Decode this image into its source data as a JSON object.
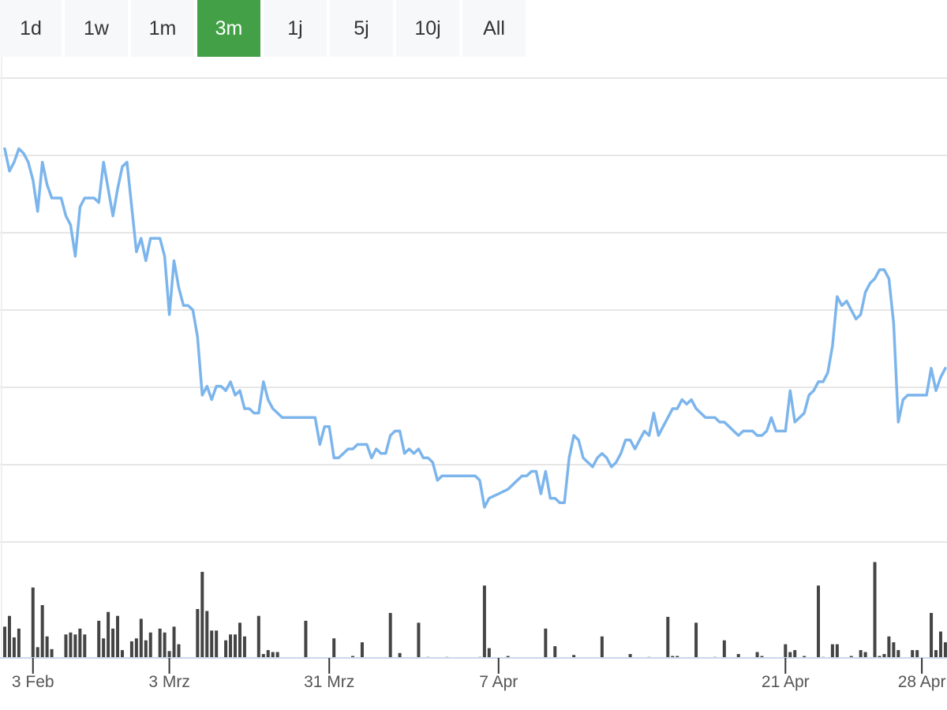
{
  "range_selector": {
    "buttons": [
      {
        "label": "1d",
        "active": false
      },
      {
        "label": "1w",
        "active": false
      },
      {
        "label": "1m",
        "active": false
      },
      {
        "label": "3m",
        "active": true
      },
      {
        "label": "1j",
        "active": false
      },
      {
        "label": "5j",
        "active": false
      },
      {
        "label": "10j",
        "active": false
      },
      {
        "label": "All",
        "active": false
      }
    ],
    "active_color": "#43a047"
  },
  "chart_data": {
    "type": "line",
    "title": "",
    "xlabel": "",
    "ylabel": "",
    "grid": true,
    "line_color": "#7cb5ec",
    "volume_color": "#444444",
    "x_ticks": [
      {
        "label": "3 Feb",
        "day": 3
      },
      {
        "label": "3 Mrz",
        "day": 32
      },
      {
        "label": "31 Mrz",
        "day": 66
      },
      {
        "label": "7 Apr",
        "day": 102
      },
      {
        "label": "21 Apr",
        "day": 163
      },
      {
        "label": "28 Apr",
        "day": 192
      }
    ],
    "xlim": [
      -3,
      195
    ],
    "ylim": [
      0,
      100
    ],
    "series": [
      {
        "values": [
          [
            -3,
            86
          ],
          [
            -2,
            81
          ],
          [
            -1,
            83
          ],
          [
            0,
            86
          ],
          [
            1,
            85
          ],
          [
            2,
            83
          ],
          [
            3,
            79
          ],
          [
            4,
            72
          ],
          [
            5,
            83
          ],
          [
            6,
            78
          ],
          [
            7,
            75
          ],
          [
            8,
            75
          ],
          [
            9,
            75
          ],
          [
            10,
            71
          ],
          [
            11,
            69
          ],
          [
            12,
            62
          ],
          [
            13,
            73
          ],
          [
            14,
            75
          ],
          [
            15,
            75
          ],
          [
            16,
            75
          ],
          [
            17,
            74
          ],
          [
            18,
            83
          ],
          [
            19,
            77
          ],
          [
            20,
            71
          ],
          [
            21,
            77
          ],
          [
            22,
            82
          ],
          [
            23,
            83
          ],
          [
            24,
            73
          ],
          [
            25,
            63
          ],
          [
            26,
            66
          ],
          [
            27,
            61
          ],
          [
            28,
            66
          ],
          [
            29,
            66
          ],
          [
            30,
            66
          ],
          [
            31,
            62
          ],
          [
            32,
            49
          ],
          [
            33,
            61
          ],
          [
            34,
            55
          ],
          [
            35,
            51
          ],
          [
            36,
            51
          ],
          [
            37,
            50
          ],
          [
            38,
            44
          ],
          [
            39,
            31
          ],
          [
            40,
            33
          ],
          [
            41,
            30
          ],
          [
            42,
            33
          ],
          [
            43,
            33
          ],
          [
            44,
            32
          ],
          [
            45,
            34
          ],
          [
            46,
            31
          ],
          [
            47,
            32
          ],
          [
            48,
            28
          ],
          [
            49,
            28
          ],
          [
            50,
            27
          ],
          [
            51,
            27
          ],
          [
            52,
            34
          ],
          [
            53,
            30
          ],
          [
            54,
            28
          ],
          [
            55,
            27
          ],
          [
            56,
            26
          ],
          [
            57,
            26
          ],
          [
            58,
            26
          ],
          [
            59,
            26
          ],
          [
            60,
            26
          ],
          [
            61,
            26
          ],
          [
            62,
            26
          ],
          [
            63,
            26
          ],
          [
            64,
            20
          ],
          [
            65,
            24
          ],
          [
            66,
            24
          ],
          [
            67,
            17
          ],
          [
            68,
            17
          ],
          [
            69,
            18
          ],
          [
            70,
            19
          ],
          [
            71,
            19
          ],
          [
            72,
            20
          ],
          [
            73,
            20
          ],
          [
            74,
            20
          ],
          [
            75,
            17
          ],
          [
            76,
            19
          ],
          [
            77,
            18
          ],
          [
            78,
            18
          ],
          [
            79,
            22
          ],
          [
            80,
            23
          ],
          [
            81,
            23
          ],
          [
            82,
            18
          ],
          [
            83,
            19
          ],
          [
            84,
            18
          ],
          [
            85,
            19
          ],
          [
            86,
            17
          ],
          [
            87,
            17
          ],
          [
            88,
            16
          ],
          [
            89,
            12
          ],
          [
            90,
            13
          ],
          [
            91,
            13
          ],
          [
            92,
            13
          ],
          [
            93,
            13
          ],
          [
            94,
            13
          ],
          [
            95,
            13
          ],
          [
            96,
            13
          ],
          [
            97,
            13
          ],
          [
            98,
            12
          ],
          [
            99,
            6
          ],
          [
            100,
            8
          ],
          [
            102,
            9
          ],
          [
            104,
            10
          ],
          [
            106,
            12
          ],
          [
            107,
            13
          ],
          [
            108,
            13
          ],
          [
            109,
            14
          ],
          [
            110,
            14
          ],
          [
            111,
            9
          ],
          [
            112,
            14
          ],
          [
            113,
            8
          ],
          [
            114,
            8
          ],
          [
            115,
            7
          ],
          [
            116,
            7
          ],
          [
            117,
            17
          ],
          [
            118,
            22
          ],
          [
            119,
            21
          ],
          [
            120,
            17
          ],
          [
            121,
            16
          ],
          [
            122,
            15
          ],
          [
            123,
            17
          ],
          [
            124,
            18
          ],
          [
            125,
            17
          ],
          [
            126,
            15
          ],
          [
            127,
            16
          ],
          [
            128,
            18
          ],
          [
            129,
            21
          ],
          [
            130,
            21
          ],
          [
            131,
            19
          ],
          [
            132,
            21
          ],
          [
            133,
            23
          ],
          [
            134,
            22
          ],
          [
            135,
            27
          ],
          [
            136,
            22
          ],
          [
            137,
            24
          ],
          [
            138,
            26
          ],
          [
            139,
            28
          ],
          [
            140,
            28
          ],
          [
            141,
            30
          ],
          [
            142,
            29
          ],
          [
            143,
            30
          ],
          [
            144,
            28
          ],
          [
            145,
            27
          ],
          [
            146,
            26
          ],
          [
            147,
            26
          ],
          [
            148,
            26
          ],
          [
            149,
            25
          ],
          [
            150,
            25
          ],
          [
            151,
            24
          ],
          [
            152,
            23
          ],
          [
            153,
            22
          ],
          [
            154,
            23
          ],
          [
            155,
            23
          ],
          [
            156,
            23
          ],
          [
            157,
            22
          ],
          [
            158,
            22
          ],
          [
            159,
            23
          ],
          [
            160,
            26
          ],
          [
            161,
            23
          ],
          [
            162,
            23
          ],
          [
            163,
            23
          ],
          [
            164,
            32
          ],
          [
            165,
            25
          ],
          [
            166,
            26
          ],
          [
            167,
            27
          ],
          [
            168,
            31
          ],
          [
            169,
            32
          ],
          [
            170,
            34
          ],
          [
            171,
            34
          ],
          [
            172,
            36
          ],
          [
            173,
            42
          ],
          [
            174,
            53
          ],
          [
            175,
            51
          ],
          [
            176,
            52
          ],
          [
            177,
            50
          ],
          [
            178,
            48
          ],
          [
            179,
            49
          ],
          [
            180,
            54
          ],
          [
            181,
            56
          ],
          [
            182,
            57
          ],
          [
            183,
            59
          ],
          [
            184,
            59
          ],
          [
            185,
            57
          ],
          [
            186,
            47
          ],
          [
            187,
            25
          ],
          [
            188,
            30
          ],
          [
            189,
            31
          ],
          [
            190,
            31
          ],
          [
            191,
            31
          ],
          [
            192,
            31
          ],
          [
            193,
            31
          ],
          [
            194,
            37
          ],
          [
            195,
            32
          ],
          [
            196,
            35
          ],
          [
            197,
            37
          ]
        ]
      }
    ],
    "volume": [
      [
        -3,
        32
      ],
      [
        -2,
        43
      ],
      [
        -1,
        21
      ],
      [
        0,
        30
      ],
      [
        3,
        72
      ],
      [
        4,
        11
      ],
      [
        5,
        54
      ],
      [
        6,
        22
      ],
      [
        7,
        9
      ],
      [
        10,
        24
      ],
      [
        11,
        26
      ],
      [
        12,
        24
      ],
      [
        13,
        30
      ],
      [
        14,
        24
      ],
      [
        17,
        38
      ],
      [
        18,
        20
      ],
      [
        19,
        47
      ],
      [
        20,
        30
      ],
      [
        21,
        43
      ],
      [
        22,
        8
      ],
      [
        24,
        17
      ],
      [
        25,
        20
      ],
      [
        26,
        40
      ],
      [
        27,
        18
      ],
      [
        28,
        26
      ],
      [
        30,
        30
      ],
      [
        31,
        26
      ],
      [
        32,
        7
      ],
      [
        33,
        32
      ],
      [
        34,
        14
      ],
      [
        38,
        50
      ],
      [
        39,
        88
      ],
      [
        40,
        48
      ],
      [
        41,
        28
      ],
      [
        42,
        28
      ],
      [
        44,
        18
      ],
      [
        45,
        24
      ],
      [
        46,
        24
      ],
      [
        47,
        36
      ],
      [
        48,
        22
      ],
      [
        51,
        43
      ],
      [
        52,
        4
      ],
      [
        53,
        8
      ],
      [
        54,
        6
      ],
      [
        55,
        6
      ],
      [
        61,
        38
      ],
      [
        67,
        20
      ],
      [
        71,
        2
      ],
      [
        73,
        16
      ],
      [
        79,
        46
      ],
      [
        81,
        5
      ],
      [
        85,
        36
      ],
      [
        87,
        1
      ],
      [
        91,
        1
      ],
      [
        98,
        1
      ],
      [
        99,
        74
      ],
      [
        100,
        10
      ],
      [
        104,
        2
      ],
      [
        112,
        30
      ],
      [
        114,
        12
      ],
      [
        118,
        3
      ],
      [
        124,
        22
      ],
      [
        130,
        4
      ],
      [
        134,
        1
      ],
      [
        138,
        42
      ],
      [
        139,
        2
      ],
      [
        140,
        2
      ],
      [
        144,
        36
      ],
      [
        148,
        1
      ],
      [
        150,
        18
      ],
      [
        153,
        4
      ],
      [
        157,
        6
      ],
      [
        158,
        2
      ],
      [
        163,
        14
      ],
      [
        164,
        6
      ],
      [
        165,
        8
      ],
      [
        167,
        2
      ],
      [
        170,
        74
      ],
      [
        171,
        1
      ],
      [
        173,
        14
      ],
      [
        174,
        14
      ],
      [
        177,
        2
      ],
      [
        179,
        8
      ],
      [
        180,
        6
      ],
      [
        182,
        98
      ],
      [
        183,
        2
      ],
      [
        184,
        4
      ],
      [
        185,
        22
      ],
      [
        186,
        16
      ],
      [
        187,
        8
      ],
      [
        190,
        8
      ],
      [
        191,
        8
      ],
      [
        194,
        46
      ],
      [
        195,
        8
      ],
      [
        196,
        27
      ],
      [
        197,
        16
      ]
    ]
  }
}
